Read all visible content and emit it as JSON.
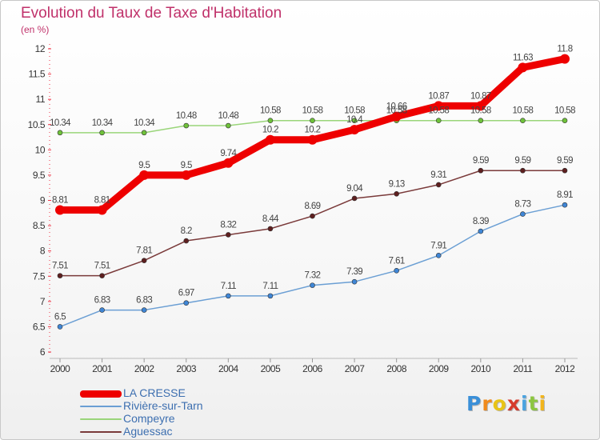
{
  "chart_data": {
    "type": "line",
    "title": "Evolution du Taux de Taxe d'Habitation",
    "ylabel": "(en %)",
    "xlabel": "",
    "x": [
      "2000",
      "2001",
      "2002",
      "2003",
      "2004",
      "2005",
      "2006",
      "2007",
      "2008",
      "2009",
      "2010",
      "2011",
      "2012"
    ],
    "ylim": [
      6,
      12
    ],
    "yticks": [
      "6",
      "6.5",
      "7",
      "7.5",
      "8",
      "8.5",
      "9",
      "9.5",
      "10",
      "10.5",
      "11",
      "11.5",
      "12"
    ],
    "grid": false,
    "legend_position": "bottom-left",
    "series": [
      {
        "name": "LA CRESSE",
        "color": "#ee0000",
        "values": [
          8.81,
          8.81,
          9.5,
          9.5,
          9.74,
          10.2,
          10.2,
          10.4,
          10.66,
          10.87,
          10.87,
          11.63,
          11.8
        ],
        "labels": [
          "8.81",
          "8.81",
          "9.5",
          "9.5",
          "9.74",
          "10.2",
          "10.2",
          "10.4",
          "10.66",
          "10.87",
          "10.87",
          "11.63",
          "11.8"
        ]
      },
      {
        "name": "Rivière-sur-Tarn",
        "color": "#6b9fd4",
        "marker_color": "#3f86d6",
        "values": [
          6.5,
          6.83,
          6.83,
          6.97,
          7.11,
          7.11,
          7.32,
          7.39,
          7.61,
          7.91,
          8.39,
          8.73,
          8.91
        ],
        "labels": [
          "6.5",
          "6.83",
          "6.83",
          "6.97",
          "7.11",
          "7.11",
          "7.32",
          "7.39",
          "7.61",
          "7.91",
          "8.39",
          "8.73",
          "8.91"
        ]
      },
      {
        "name": "Compeyre",
        "color": "#9ad57a",
        "marker_color": "#6fc23a",
        "values": [
          10.34,
          10.34,
          10.34,
          10.48,
          10.48,
          10.58,
          10.58,
          10.58,
          10.58,
          10.58,
          10.58,
          10.58,
          10.58
        ],
        "labels": [
          "10.34",
          "10.34",
          "10.34",
          "10.48",
          "10.48",
          "10.58",
          "10.58",
          "10.58",
          "10.58",
          "10.58",
          "10.58",
          "10.58",
          "10.58"
        ]
      },
      {
        "name": "Aguessac",
        "color": "#7a3a3a",
        "marker_color": "#5e1f1f",
        "values": [
          7.51,
          7.51,
          7.81,
          8.2,
          8.32,
          8.44,
          8.69,
          9.04,
          9.13,
          9.31,
          9.59,
          9.59,
          9.59
        ],
        "labels": [
          "7.51",
          "7.51",
          "7.81",
          "8.2",
          "8.32",
          "8.44",
          "8.69",
          "9.04",
          "9.13",
          "9.31",
          "9.59",
          "9.59",
          "9.59"
        ]
      }
    ]
  },
  "logo": {
    "letters": [
      "P",
      "r",
      "o",
      "x",
      "i",
      "t",
      "i"
    ],
    "colors": [
      "#3a8fd8",
      "#f08a1c",
      "#e8c416",
      "#d63a2c",
      "#4aa3e0",
      "#8cc63f",
      "#f2b51c"
    ]
  }
}
